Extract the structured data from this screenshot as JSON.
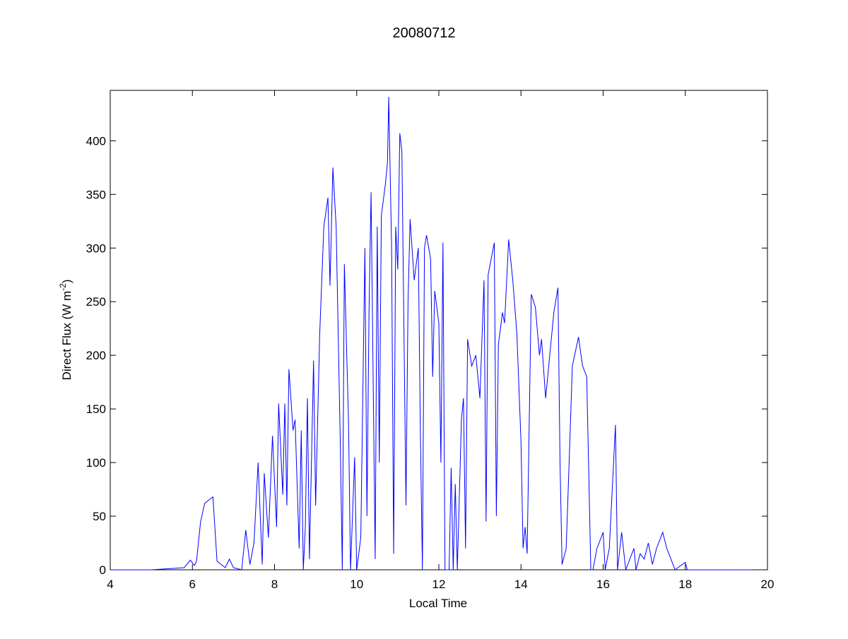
{
  "chart_data": {
    "type": "line",
    "title": "20080712",
    "xlabel": "Local Time",
    "ylabel": [
      "Direct Flux (W m",
      "-2",
      ")"
    ],
    "xlim": [
      4,
      20
    ],
    "xticks": [
      4,
      6,
      8,
      10,
      12,
      14,
      16,
      18,
      20
    ],
    "ylim": [
      0,
      447
    ],
    "yticks": [
      0,
      50,
      100,
      150,
      200,
      250,
      300,
      350,
      400
    ],
    "series": [
      {
        "name": "Direct Flux",
        "color": "#0000ff",
        "x": [
          4,
          5,
          5.8,
          5.95,
          6.05,
          6.1,
          6.2,
          6.3,
          6.4,
          6.5,
          6.6,
          6.8,
          6.9,
          7.0,
          7.2,
          7.3,
          7.4,
          7.5,
          7.6,
          7.7,
          7.75,
          7.85,
          7.95,
          8.05,
          8.1,
          8.2,
          8.25,
          8.3,
          8.35,
          8.45,
          8.5,
          8.6,
          8.65,
          8.7,
          8.75,
          8.8,
          8.85,
          8.95,
          9.0,
          9.1,
          9.2,
          9.3,
          9.35,
          9.42,
          9.5,
          9.6,
          9.65,
          9.7,
          9.8,
          9.85,
          9.95,
          10.0,
          10.1,
          10.2,
          10.25,
          10.3,
          10.35,
          10.45,
          10.5,
          10.55,
          10.6,
          10.7,
          10.75,
          10.78,
          10.85,
          10.9,
          10.95,
          11.0,
          11.05,
          11.1,
          11.2,
          11.25,
          11.3,
          11.4,
          11.5,
          11.55,
          11.6,
          11.65,
          11.7,
          11.8,
          11.85,
          11.9,
          12.0,
          12.05,
          12.1,
          12.15,
          12.25,
          12.3,
          12.35,
          12.4,
          12.45,
          12.55,
          12.6,
          12.65,
          12.7,
          12.8,
          12.9,
          13.0,
          13.1,
          13.15,
          13.2,
          13.35,
          13.4,
          13.45,
          13.55,
          13.6,
          13.7,
          13.8,
          13.9,
          14.0,
          14.05,
          14.1,
          14.15,
          14.25,
          14.35,
          14.45,
          14.5,
          14.6,
          14.7,
          14.8,
          14.9,
          14.95,
          15.0,
          15.1,
          15.15,
          15.25,
          15.4,
          15.5,
          15.6,
          15.7,
          15.75,
          15.85,
          16.0,
          16.05,
          16.15,
          16.3,
          16.35,
          16.45,
          16.55,
          16.75,
          16.8,
          16.9,
          17.0,
          17.1,
          17.2,
          17.3,
          17.45,
          17.55,
          17.65,
          17.75,
          18.0,
          18.05,
          19.6
        ],
        "values": [
          0,
          0,
          2,
          9,
          4,
          8,
          45,
          62,
          65,
          68,
          8,
          2,
          10,
          2,
          0,
          37,
          5,
          25,
          100,
          5,
          90,
          30,
          125,
          40,
          155,
          70,
          155,
          60,
          187,
          130,
          140,
          20,
          130,
          0,
          40,
          160,
          10,
          195,
          60,
          220,
          320,
          347,
          265,
          375,
          320,
          120,
          0,
          285,
          140,
          0,
          105,
          0,
          30,
          300,
          50,
          240,
          352,
          10,
          320,
          100,
          330,
          360,
          380,
          441,
          300,
          15,
          320,
          280,
          407,
          390,
          60,
          250,
          327,
          270,
          300,
          130,
          0,
          300,
          312,
          290,
          180,
          260,
          230,
          100,
          305,
          0,
          0,
          95,
          0,
          80,
          0,
          140,
          160,
          20,
          215,
          190,
          200,
          160,
          270,
          45,
          275,
          305,
          50,
          210,
          240,
          230,
          308,
          270,
          220,
          120,
          20,
          40,
          15,
          257,
          245,
          200,
          215,
          160,
          200,
          240,
          263,
          100,
          5,
          20,
          75,
          190,
          217,
          190,
          180,
          0,
          0,
          20,
          35,
          0,
          20,
          135,
          0,
          35,
          0,
          20,
          0,
          15,
          10,
          25,
          5,
          20,
          35,
          20,
          10,
          0,
          7,
          0,
          0
        ]
      }
    ]
  }
}
